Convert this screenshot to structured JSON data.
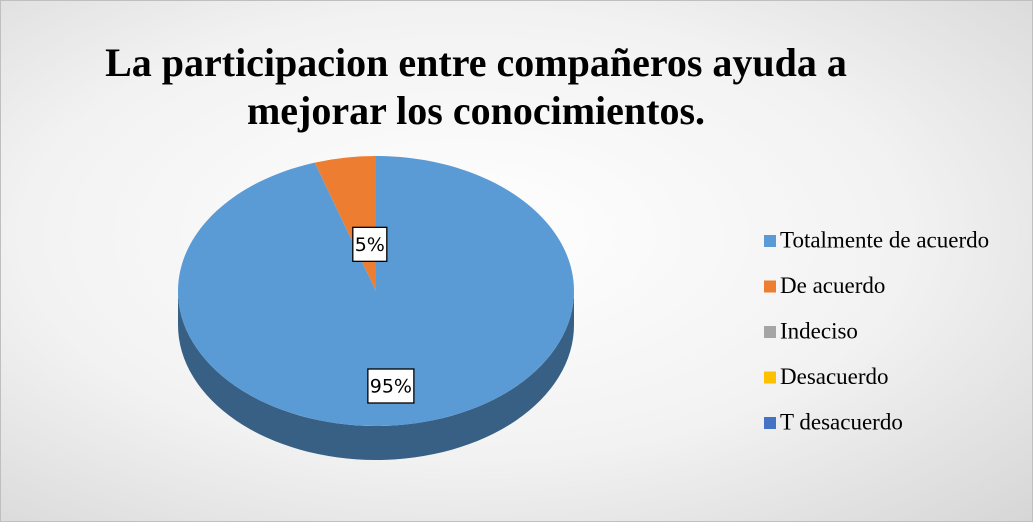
{
  "chart_data": {
    "type": "pie",
    "title": "La participacion entre compañeros ayuda a mejorar los conocimientos.",
    "categories": [
      "Totalmente de acuerdo",
      "De acuerdo",
      "Indeciso",
      "Desacuerdo",
      "T  desacuerdo"
    ],
    "values": [
      95,
      5,
      0,
      0,
      0
    ],
    "value_labels": [
      "95%",
      "5%",
      null,
      null,
      null
    ],
    "colors": [
      "#5b9bd5",
      "#ed7d31",
      "#a5a5a5",
      "#ffc000",
      "#4472c4"
    ],
    "legend": "right"
  }
}
